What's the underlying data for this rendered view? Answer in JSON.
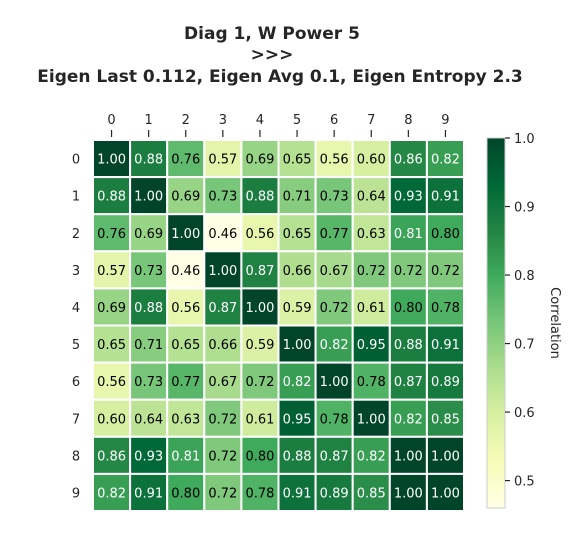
{
  "chart_data": {
    "type": "heatmap",
    "title_lines": [
      "Diag 1, W Power 5",
      ">>>",
      "Eigen Last 0.112, Eigen Avg 0.1, Eigen Entropy 2.3"
    ],
    "x_labels": [
      "0",
      "1",
      "2",
      "3",
      "4",
      "5",
      "6",
      "7",
      "8",
      "9"
    ],
    "y_labels": [
      "0",
      "1",
      "2",
      "3",
      "4",
      "5",
      "6",
      "7",
      "8",
      "9"
    ],
    "values": [
      [
        1.0,
        0.88,
        0.76,
        0.57,
        0.69,
        0.65,
        0.56,
        0.6,
        0.86,
        0.82
      ],
      [
        0.88,
        1.0,
        0.69,
        0.73,
        0.88,
        0.71,
        0.73,
        0.64,
        0.93,
        0.91
      ],
      [
        0.76,
        0.69,
        1.0,
        0.46,
        0.56,
        0.65,
        0.77,
        0.63,
        0.81,
        0.8
      ],
      [
        0.57,
        0.73,
        0.46,
        1.0,
        0.87,
        0.66,
        0.67,
        0.72,
        0.72,
        0.72
      ],
      [
        0.69,
        0.88,
        0.56,
        0.87,
        1.0,
        0.59,
        0.72,
        0.61,
        0.8,
        0.78
      ],
      [
        0.65,
        0.71,
        0.65,
        0.66,
        0.59,
        1.0,
        0.82,
        0.95,
        0.88,
        0.91
      ],
      [
        0.56,
        0.73,
        0.77,
        0.67,
        0.72,
        0.82,
        1.0,
        0.78,
        0.87,
        0.89
      ],
      [
        0.6,
        0.64,
        0.63,
        0.72,
        0.61,
        0.95,
        0.78,
        1.0,
        0.82,
        0.85
      ],
      [
        0.86,
        0.93,
        0.81,
        0.72,
        0.8,
        0.88,
        0.87,
        0.82,
        1.0,
        1.0
      ],
      [
        0.82,
        0.91,
        0.8,
        0.72,
        0.78,
        0.91,
        0.89,
        0.85,
        1.0,
        1.0
      ]
    ],
    "colorbar": {
      "label": "Correlation",
      "ticks": [
        "0.5",
        "0.6",
        "0.7",
        "0.8",
        "0.9",
        "1.0"
      ],
      "range": [
        0.46,
        1.0
      ],
      "colormap": "YlGn"
    }
  }
}
